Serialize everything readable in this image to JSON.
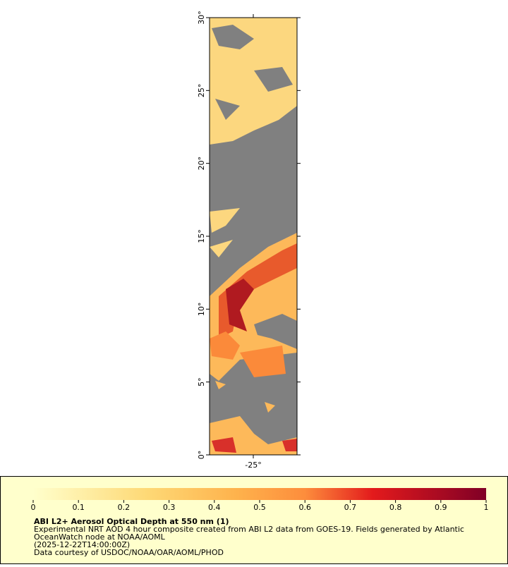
{
  "map": {
    "ylim": [
      0,
      30
    ],
    "xlim": [
      -28,
      -22
    ],
    "lat_ticks": [
      {
        "value": 0,
        "label": "0°"
      },
      {
        "value": 5,
        "label": "5°"
      },
      {
        "value": 10,
        "label": "10°"
      },
      {
        "value": 15,
        "label": "15°"
      },
      {
        "value": 20,
        "label": "20°"
      },
      {
        "value": 25,
        "label": "25°"
      },
      {
        "value": 30,
        "label": "30°"
      }
    ],
    "lon_ticks": [
      {
        "value": -25,
        "label": "-25°"
      }
    ]
  },
  "colorbar": {
    "lim": [
      0,
      1
    ],
    "ticks": [
      0,
      0.1,
      0.2,
      0.3,
      0.4,
      0.5,
      0.6,
      0.7,
      0.8,
      0.9,
      1
    ]
  },
  "legend": {
    "title": "ABI L2+ Aerosol Optical Depth at 550 nm (1)",
    "lines": [
      "Experimental NRT AOD 4 hour composite created from ABI L2 data from GOES-19. Fields generated by Atlantic",
      "OceanWatch node at NOAA/AOML",
      "(2025-12-22T14:00:00Z)",
      "Data courtesy of USDOC/NOAA/OAR/AOML/PHOD"
    ]
  }
}
